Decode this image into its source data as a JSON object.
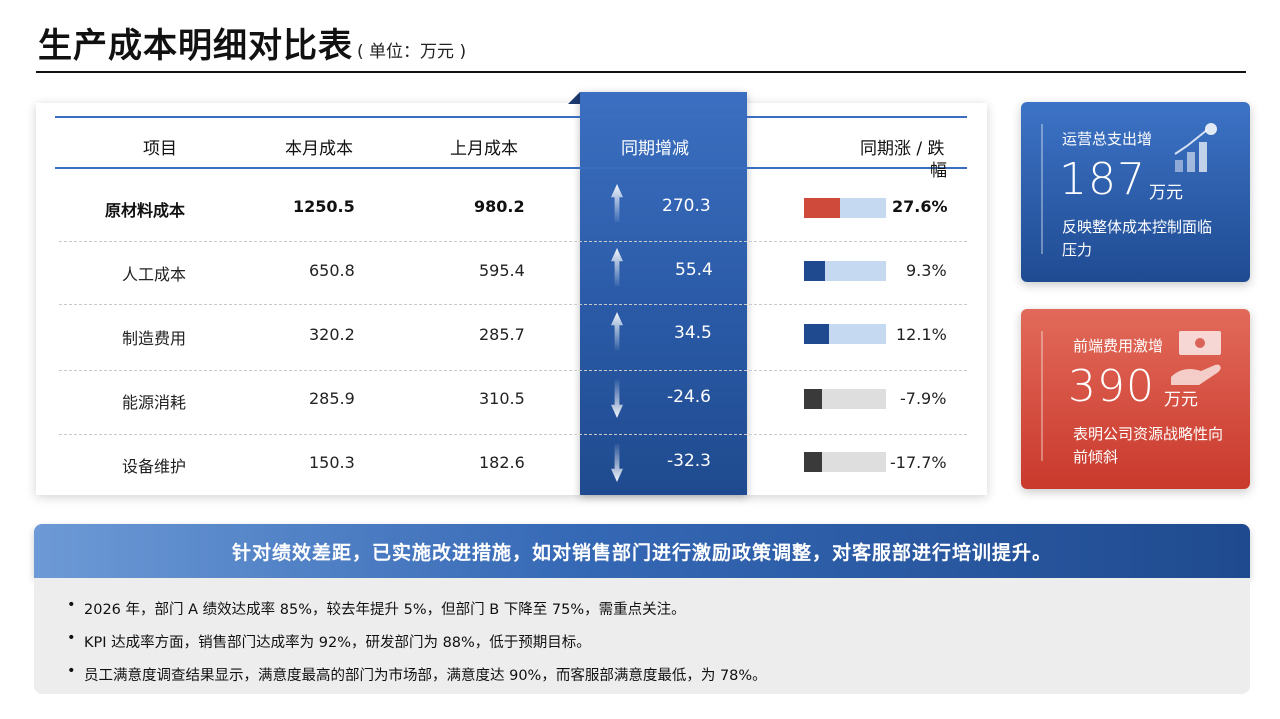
{
  "page": {
    "title": "生产成本明细对比表",
    "unit": "( 单位：万元 )"
  },
  "table": {
    "headers": {
      "item": "项目",
      "current": "本月成本",
      "previous": "上月成本",
      "change": "同期增减",
      "pct": "同期涨 / 跌",
      "pct2": "幅"
    },
    "rows": [
      {
        "item": "原材料成本",
        "current": "1250.5",
        "previous": "980.2",
        "change": "270.3",
        "pct": "27.6%",
        "direction": "up"
      },
      {
        "item": "人工成本",
        "current": "650.8",
        "previous": "595.4",
        "change": "55.4",
        "pct": "9.3%",
        "direction": "up"
      },
      {
        "item": "制造费用",
        "current": "320.2",
        "previous": "285.7",
        "change": "34.5",
        "pct": "12.1%",
        "direction": "up"
      },
      {
        "item": "能源消耗",
        "current": "285.9",
        "previous": "310.5",
        "change": "-24.6",
        "pct": "-7.9%",
        "direction": "down"
      },
      {
        "item": "设备维护",
        "current": "150.3",
        "previous": "182.6",
        "change": "-32.3",
        "pct": "-17.7%",
        "direction": "down"
      }
    ],
    "bar_fill_fraction": [
      0.44,
      0.25,
      0.3,
      0.22,
      0.22
    ],
    "colors": {
      "highlight": "#d04a3c",
      "up": "#1f4a8f",
      "down": "#3a3a3a",
      "track_up": "#c5d9f1",
      "track_down": "#dedede"
    }
  },
  "cards": [
    {
      "label": "运营总支出增",
      "value": "187",
      "unit": "万元",
      "desc": "反映整体成本控制面临压力",
      "icon": "growth-chart-icon"
    },
    {
      "label": "前端费用激增",
      "value": "390",
      "unit": "万元",
      "desc": "表明公司资源战略性向前倾斜",
      "icon": "money-hand-icon"
    }
  ],
  "banner": "针对绩效差距，已实施改进措施，如对销售部门进行激励政策调整，对客服部进行培训提升。",
  "notes": [
    "2026 年，部门 A 绩效达成率 85%，较去年提升 5%，但部门 B 下降至 75%，需重点关注。",
    "KPI 达成率方面，销售部门达成率为 92%，研发部门为 88%，低于预期目标。",
    "员工满意度调查结果显示，满意度最高的部门为市场部，满意度达 90%，而客服部满意度最低，为 78%。"
  ]
}
